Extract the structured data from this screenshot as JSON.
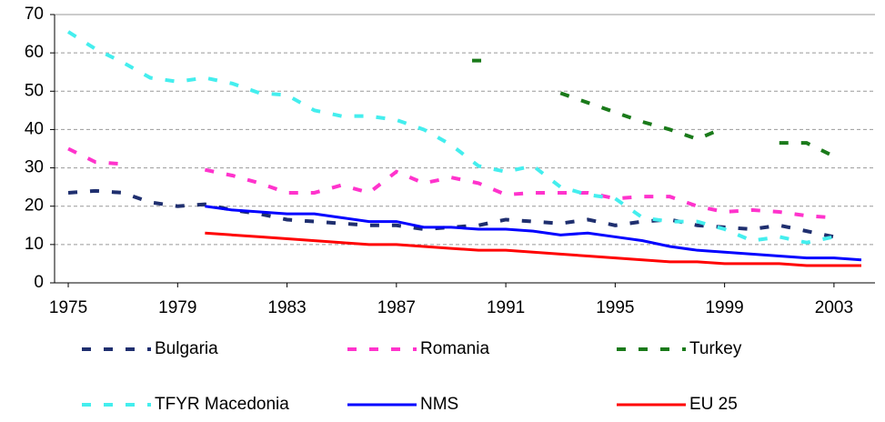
{
  "chart_data": {
    "type": "line",
    "x": [
      1975,
      1976,
      1977,
      1978,
      1979,
      1980,
      1981,
      1982,
      1983,
      1984,
      1985,
      1986,
      1987,
      1988,
      1989,
      1990,
      1991,
      1992,
      1993,
      1994,
      1995,
      1996,
      1997,
      1998,
      1999,
      2000,
      2001,
      2002,
      2003,
      2004
    ],
    "xlim": [
      1974.5,
      2004.5
    ],
    "xticks": [
      1975,
      1979,
      1983,
      1987,
      1991,
      1995,
      1999,
      2003
    ],
    "ylim": [
      0,
      70
    ],
    "yticks": [
      0,
      10,
      20,
      30,
      40,
      50,
      60,
      70
    ],
    "grid": true,
    "legend": "bottom",
    "series": [
      {
        "name": "Bulgaria",
        "color": "#1f2f6f",
        "style": "dashed",
        "values": [
          23.5,
          24,
          23.5,
          21,
          20,
          20.5,
          19,
          18,
          16.5,
          16,
          15.5,
          15,
          15,
          14,
          14.5,
          15,
          16.5,
          16,
          15.5,
          16.5,
          15,
          16,
          16.5,
          15,
          14.5,
          14,
          15,
          13.5,
          12,
          null
        ]
      },
      {
        "name": "Romania",
        "color": "#ff33cc",
        "style": "dashed",
        "values": [
          35,
          31.5,
          31,
          null,
          null,
          29.5,
          28,
          26,
          23.5,
          23.5,
          25.5,
          23.5,
          29,
          26,
          27.5,
          26,
          23,
          23.5,
          23.5,
          23.5,
          22,
          22.5,
          22.5,
          20,
          18.5,
          19,
          18.5,
          17.5,
          17,
          null
        ]
      },
      {
        "name": "Turkey",
        "color": "#1a7a1a",
        "style": "dashed",
        "values": [
          null,
          null,
          null,
          null,
          null,
          null,
          null,
          null,
          null,
          null,
          null,
          null,
          null,
          null,
          null,
          58,
          null,
          null,
          49.5,
          47,
          44.5,
          42,
          40,
          37.5,
          40.5,
          null,
          36.5,
          36.5,
          33,
          null
        ]
      },
      {
        "name": "TFYR Macedonia",
        "color": "#44eeee",
        "style": "dashed",
        "values": [
          65.5,
          61,
          57.5,
          53.5,
          52.5,
          53.5,
          52,
          49.5,
          49,
          45,
          43.5,
          43.5,
          42.5,
          40,
          36,
          30.5,
          29,
          30.5,
          25,
          23,
          22,
          17,
          16,
          16,
          14,
          11,
          12,
          10.5,
          12,
          null
        ]
      },
      {
        "name": "NMS",
        "color": "#0000ff",
        "style": "solid",
        "values": [
          null,
          null,
          null,
          null,
          null,
          20,
          19,
          18.5,
          18,
          18,
          17,
          16,
          16,
          14.5,
          14.5,
          14,
          14,
          13.5,
          12.5,
          13,
          12,
          11,
          9.5,
          8.5,
          8,
          7.5,
          7,
          6.5,
          6.5,
          6
        ]
      },
      {
        "name": "EU 25",
        "color": "#ff0000",
        "style": "solid",
        "values": [
          null,
          null,
          null,
          null,
          null,
          13,
          12.5,
          12,
          11.5,
          11,
          10.5,
          10,
          10,
          9.5,
          9,
          8.5,
          8.5,
          8,
          7.5,
          7,
          6.5,
          6,
          5.5,
          5.5,
          5,
          5,
          5,
          4.5,
          4.5,
          4.5
        ]
      }
    ]
  }
}
